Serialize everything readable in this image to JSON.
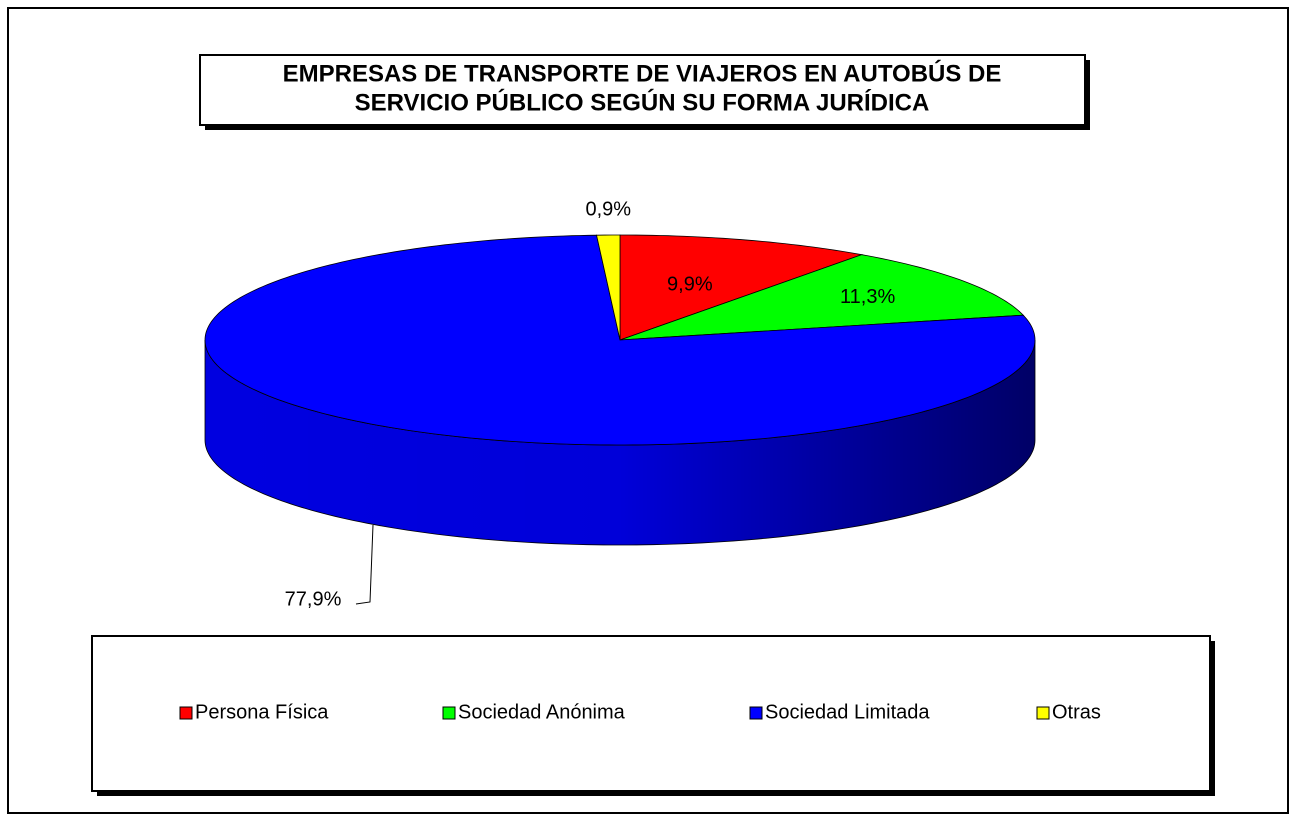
{
  "chart_data": {
    "type": "pie3d",
    "title": [
      "EMPRESAS DE TRANSPORTE DE VIAJEROS EN AUTOBÚS DE",
      "SERVICIO PÚBLICO SEGÚN SU FORMA JURÍDICA"
    ],
    "categories": [
      "Persona Física",
      "Sociedad Anónima",
      "Sociedad Limitada",
      "Otras"
    ],
    "values": [
      9.9,
      11.3,
      77.9,
      0.9
    ],
    "value_labels": [
      "9,9%",
      "11,3%",
      "77,9%",
      "0,9%"
    ],
    "colors": [
      "#ff0000",
      "#00ff00",
      "#0000ff",
      "#ffff00"
    ],
    "legend": "bottom"
  }
}
